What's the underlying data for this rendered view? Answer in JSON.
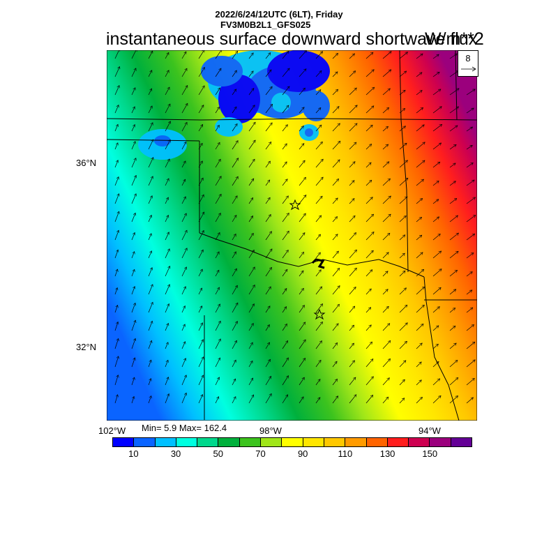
{
  "header": {
    "datetime": "2022/6/24/12UTC (6LT), Friday",
    "model": "FV3M0B2L1_GFS025"
  },
  "title": "instantaneous surface downward shortwave flux",
  "units": "W/m**2",
  "stats": {
    "text": "Min= 5.9 Max= 162.4",
    "min": 5.9,
    "max": 162.4
  },
  "axes": {
    "lat_labels": [
      "36°N",
      "32°N"
    ],
    "lon_labels": [
      "102°W",
      "98°W",
      "94°W"
    ]
  },
  "vector_reference": {
    "label": "8"
  },
  "colorbar": {
    "colors": [
      "#0000ff",
      "#0a64ff",
      "#00c0ff",
      "#00ffe0",
      "#00d88c",
      "#00b03c",
      "#3cc31e",
      "#a0e619",
      "#ffff00",
      "#ffe600",
      "#ffc800",
      "#ff9b00",
      "#ff6400",
      "#ff1e1e",
      "#cd0050",
      "#9b007d",
      "#640096"
    ],
    "tick_labels": [
      "10",
      "30",
      "50",
      "70",
      "90",
      "110",
      "130",
      "150"
    ]
  },
  "markers": [
    "star-1",
    "star-2"
  ]
}
